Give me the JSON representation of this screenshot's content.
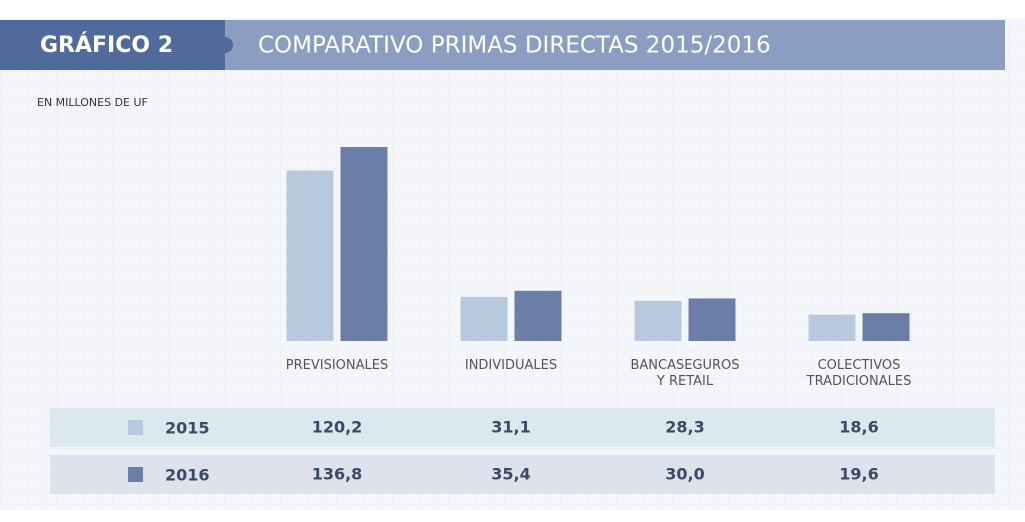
{
  "chart_data": {
    "type": "bar",
    "label": "GRÁFICO 2",
    "title": "COMPARATIVO PRIMAS DIRECTAS 2015/2016",
    "subtitle": "EN MILLONES DE UF",
    "categories": [
      "PREVISIONALES",
      "INDIVIDUALES",
      "BANCASEGUROS\nY RETAIL",
      "COLECTIVOS\nTRADICIONALES"
    ],
    "series": [
      {
        "name": "2015",
        "color": "#b7c9df",
        "values": [
          120.2,
          31.1,
          28.3,
          18.6
        ],
        "value_labels": [
          "120,2",
          "31,1",
          "28,3",
          "18,6"
        ]
      },
      {
        "name": "2016",
        "color": "#6a7ea8",
        "values": [
          136.8,
          35.4,
          30.0,
          19.6
        ],
        "value_labels": [
          "136,8",
          "35,4",
          "30,0",
          "19,6"
        ]
      }
    ]
  }
}
